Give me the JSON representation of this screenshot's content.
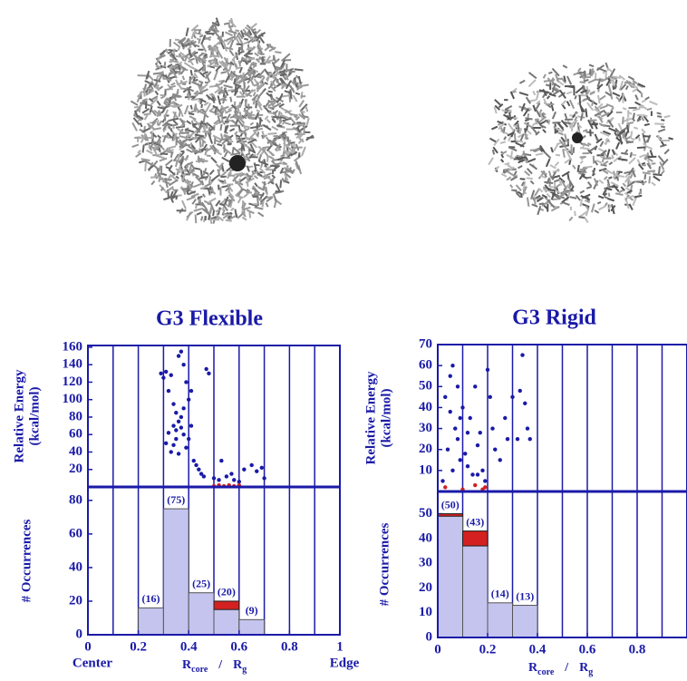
{
  "chart_data": [
    {
      "type": "scatter",
      "title": "G3 Flexible",
      "ylabel": [
        "Relative Energy",
        "(kcal/mol)"
      ],
      "xlim": [
        0,
        1
      ],
      "ylim": [
        0,
        162
      ],
      "yticks": [
        20,
        40,
        60,
        80,
        100,
        120,
        140,
        160
      ],
      "xgrid": [
        0.1,
        0.2,
        0.3,
        0.4,
        0.5,
        0.6,
        0.7,
        0.8,
        0.9
      ],
      "series": [
        {
          "color": "#1a1aa8",
          "x": [
            0.29,
            0.3,
            0.31,
            0.32,
            0.33,
            0.34,
            0.35,
            0.36,
            0.37,
            0.38,
            0.36,
            0.37,
            0.38,
            0.35,
            0.34,
            0.33,
            0.36,
            0.39,
            0.4,
            0.41,
            0.42,
            0.43,
            0.44,
            0.4,
            0.41,
            0.39,
            0.38,
            0.37,
            0.35,
            0.34,
            0.32,
            0.31,
            0.45,
            0.46,
            0.47,
            0.48,
            0.5,
            0.52,
            0.55,
            0.57,
            0.6,
            0.62,
            0.65,
            0.67,
            0.69,
            0.7,
            0.53,
            0.58
          ],
          "y": [
            130,
            125,
            132,
            110,
            128,
            95,
            85,
            150,
            155,
            140,
            75,
            68,
            60,
            55,
            48,
            40,
            38,
            45,
            55,
            70,
            30,
            25,
            20,
            100,
            110,
            120,
            90,
            80,
            65,
            70,
            62,
            50,
            15,
            12,
            135,
            130,
            10,
            8,
            12,
            15,
            6,
            20,
            25,
            18,
            22,
            10,
            30,
            8
          ]
        },
        {
          "color": "#d42020",
          "x": [
            0.5,
            0.52,
            0.54,
            0.56,
            0.58,
            0.6
          ],
          "y": [
            1,
            2,
            1,
            2,
            1,
            2
          ]
        }
      ]
    },
    {
      "type": "histogram",
      "ylabel": "# Occurrences",
      "xlim": [
        0,
        1
      ],
      "ylim": [
        0,
        88
      ],
      "yticks": [
        0,
        20,
        40,
        60,
        80
      ],
      "xticks": [
        0,
        0.2,
        0.4,
        0.6,
        0.8,
        1
      ],
      "xgrid": [
        0.1,
        0.2,
        0.3,
        0.4,
        0.5,
        0.6,
        0.7,
        0.8,
        0.9
      ],
      "bins": [
        0.2,
        0.3,
        0.4,
        0.5,
        0.6,
        0.7
      ],
      "counts": [
        16,
        75,
        25,
        20,
        9
      ],
      "value_labels": [
        "(16)",
        "(75)",
        "(25)",
        "(20)",
        "(9)"
      ],
      "color": "#c4c4ee",
      "highlight": {
        "color": "#d42020",
        "counts": [
          0,
          0,
          0,
          5,
          0
        ]
      },
      "xlabel_parts": [
        "R",
        "core",
        "/",
        "R",
        "g"
      ],
      "annotations": [
        "Center",
        "Edge"
      ],
      "annotation_color": "#d42020"
    },
    {
      "type": "scatter",
      "title": "G3 Rigid",
      "ylabel": [
        "Relative Energy",
        "(kcal/mol)"
      ],
      "xlim": [
        0,
        1
      ],
      "ylim": [
        0,
        70
      ],
      "yticks": [
        10,
        20,
        30,
        40,
        50,
        60,
        70
      ],
      "xgrid": [
        0.1,
        0.2,
        0.3,
        0.4,
        0.5,
        0.6,
        0.7,
        0.8,
        0.9
      ],
      "series": [
        {
          "color": "#1a1aa8",
          "x": [
            0.03,
            0.05,
            0.06,
            0.07,
            0.08,
            0.09,
            0.04,
            0.06,
            0.1,
            0.11,
            0.12,
            0.13,
            0.14,
            0.15,
            0.16,
            0.17,
            0.18,
            0.19,
            0.2,
            0.21,
            0.22,
            0.23,
            0.25,
            0.27,
            0.28,
            0.3,
            0.32,
            0.33,
            0.34,
            0.35,
            0.36,
            0.37,
            0.08,
            0.09,
            0.12,
            0.16,
            0.02,
            0.05
          ],
          "y": [
            45,
            55,
            60,
            30,
            25,
            15,
            20,
            10,
            40,
            18,
            12,
            35,
            8,
            50,
            22,
            28,
            10,
            5,
            58,
            45,
            30,
            20,
            15,
            35,
            25,
            45,
            25,
            48,
            65,
            42,
            30,
            25,
            50,
            35,
            28,
            8,
            5,
            38
          ]
        },
        {
          "color": "#d42020",
          "x": [
            0.03,
            0.1,
            0.15,
            0.18,
            0.19
          ],
          "y": [
            2,
            1,
            3,
            1,
            2
          ]
        }
      ]
    },
    {
      "type": "histogram",
      "ylabel": "# Occurrences",
      "xlim": [
        0,
        1
      ],
      "ylim": [
        0,
        59
      ],
      "yticks": [
        0,
        10,
        20,
        30,
        40,
        50
      ],
      "xticks": [
        0,
        0.2,
        0.4,
        0.6,
        0.8
      ],
      "xgrid": [
        0.1,
        0.2,
        0.3,
        0.4,
        0.5,
        0.6,
        0.7,
        0.8,
        0.9
      ],
      "bins": [
        0,
        0.1,
        0.2,
        0.3,
        0.4
      ],
      "counts": [
        50,
        43,
        14,
        13
      ],
      "value_labels": [
        "(50)",
        "(43)",
        "(14)",
        "(13)"
      ],
      "color": "#c4c4ee",
      "highlight": {
        "color": "#d42020",
        "counts": [
          1,
          6,
          0,
          0
        ]
      },
      "xlabel_parts": [
        "R",
        "core",
        "/",
        "R",
        "g"
      ]
    }
  ]
}
